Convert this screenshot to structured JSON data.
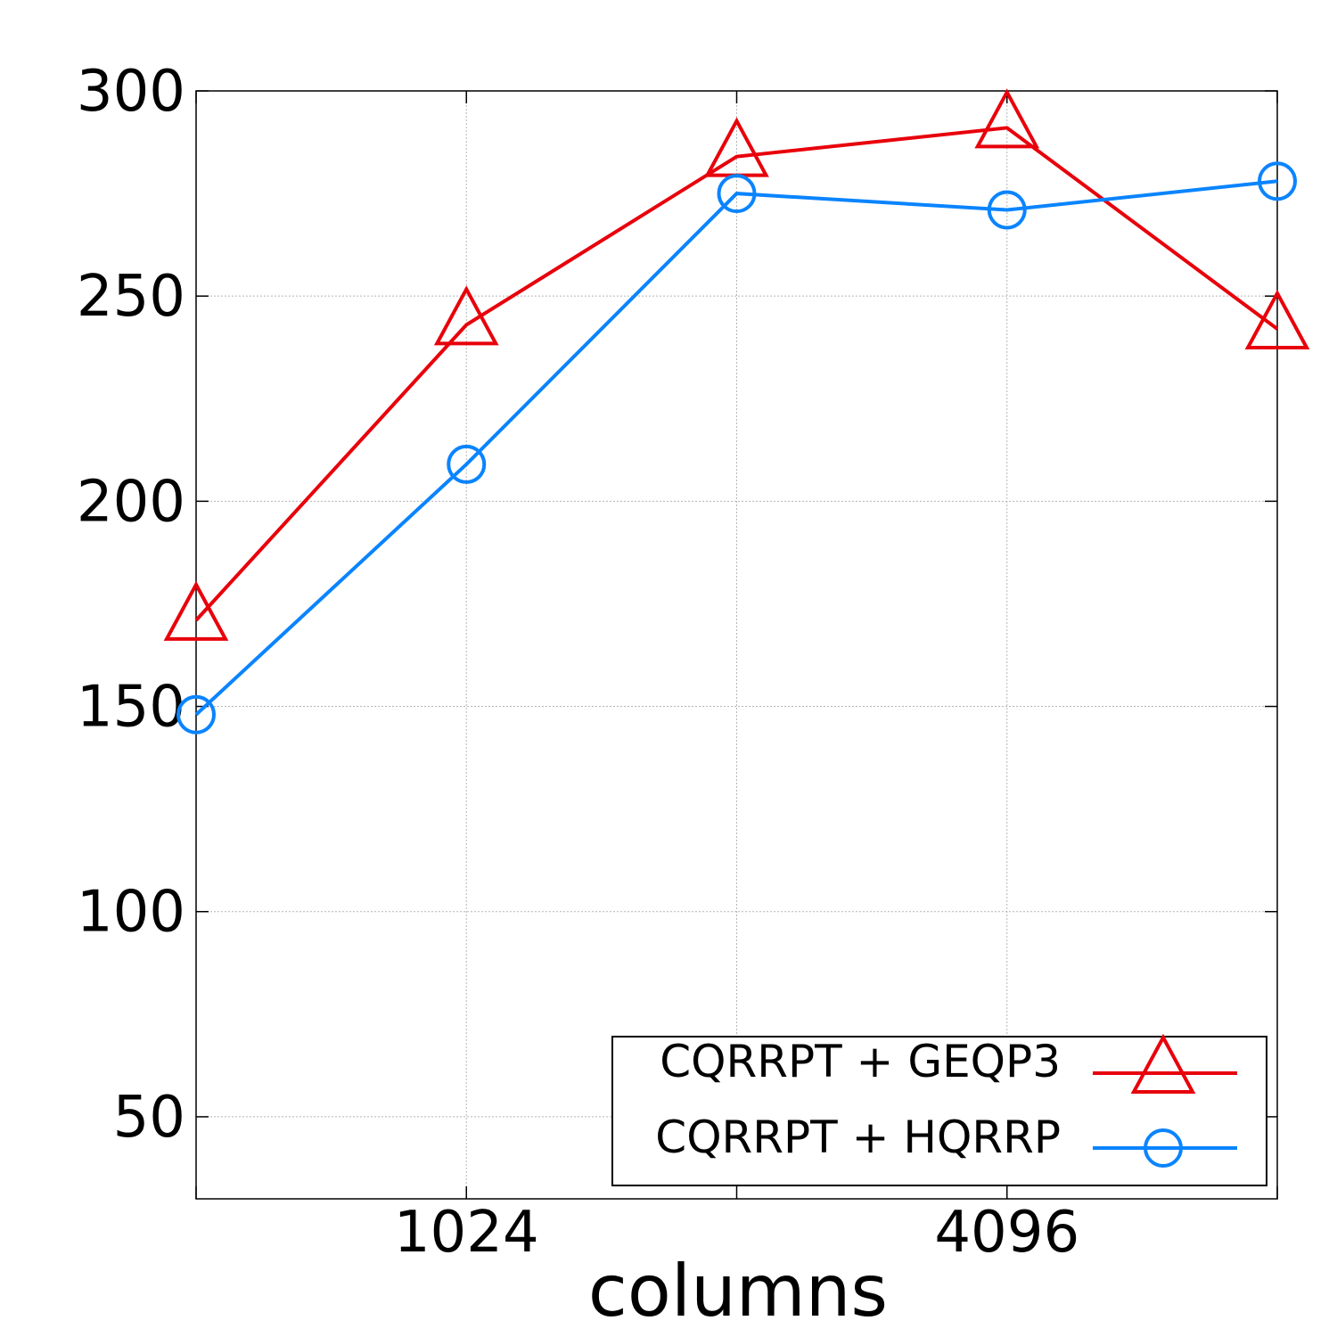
{
  "chart_data": {
    "type": "line",
    "title": "",
    "xlabel": "columns",
    "ylabel": "",
    "x": [
      512,
      1024,
      2048,
      4096,
      8192
    ],
    "x_scale": "log2",
    "xticks": [
      1024,
      4096
    ],
    "xtick_labels": [
      "1024",
      "4096"
    ],
    "xlim": [
      512,
      8192
    ],
    "ylim": [
      30,
      300
    ],
    "yticks": [
      50,
      100,
      150,
      200,
      250,
      300
    ],
    "ytick_labels": [
      "50",
      "100",
      "150",
      "200",
      "250",
      "300"
    ],
    "grid": true,
    "legend_position": "bottom-right",
    "series": [
      {
        "name": "CQRRPT + GEQP3",
        "color": "#e8000b",
        "marker": "triangle",
        "values": [
          171,
          243,
          284,
          291,
          242
        ]
      },
      {
        "name": "CQRRPT + HQRRP",
        "color": "#0a84ff",
        "marker": "circle",
        "values": [
          148,
          209,
          275,
          271,
          278
        ]
      }
    ]
  }
}
